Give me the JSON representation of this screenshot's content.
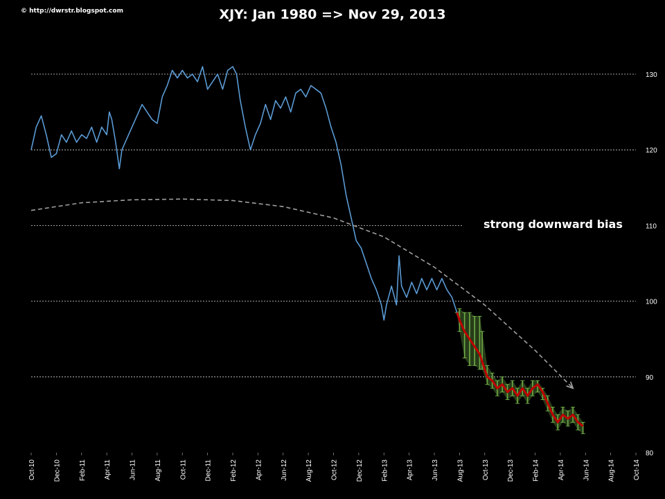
{
  "credit": "© http://dwrstr.blogspot.com",
  "title": "XJY: Jan 1980  => Nov 29, 2013",
  "annotation": "strong downward bias",
  "colors": {
    "background": "#000000",
    "price": "#5b9bd5",
    "forecast_band": "#70ad47",
    "forecast_mean": "#c00000",
    "trend": "#a0a0a0",
    "grid": "#ffffff"
  },
  "chart_data": {
    "type": "line",
    "title": "XJY: Jan 1980  => Nov 29, 2013",
    "y_axis": {
      "min": 80,
      "max": 130,
      "ticks": [
        80,
        90,
        100,
        110,
        120,
        130
      ],
      "position": "right"
    },
    "x_ticks": [
      "Oct-10",
      "Dec-10",
      "Feb-11",
      "Apr-11",
      "Jun-11",
      "Aug-11",
      "Oct-11",
      "Dec-11",
      "Feb-12",
      "Apr-12",
      "Jun-12",
      "Aug-12",
      "Oct-12",
      "Dec-12",
      "Feb-13",
      "Apr-13",
      "Jun-13",
      "Aug-13",
      "Oct-13",
      "Dec-13",
      "Feb-14",
      "Apr-14",
      "Jun-14",
      "Aug-14",
      "Oct-14"
    ],
    "grid": {
      "horizontal": true,
      "style": "dotted"
    },
    "series": [
      {
        "kind": "price",
        "points": [
          [
            0,
            120
          ],
          [
            0.2,
            123
          ],
          [
            0.4,
            124.5
          ],
          [
            0.6,
            122
          ],
          [
            0.8,
            119
          ],
          [
            1,
            119.5
          ],
          [
            1.2,
            122
          ],
          [
            1.4,
            121
          ],
          [
            1.6,
            122.5
          ],
          [
            1.8,
            121
          ],
          [
            2,
            122
          ],
          [
            2.2,
            121.5
          ],
          [
            2.4,
            123
          ],
          [
            2.6,
            121
          ],
          [
            2.8,
            123
          ],
          [
            3,
            122
          ],
          [
            3.1,
            125
          ],
          [
            3.2,
            124
          ],
          [
            3.35,
            121
          ],
          [
            3.5,
            117.5
          ],
          [
            3.6,
            120
          ],
          [
            3.8,
            121.5
          ],
          [
            4,
            123
          ],
          [
            4.2,
            124.5
          ],
          [
            4.4,
            126
          ],
          [
            4.6,
            125
          ],
          [
            4.8,
            124
          ],
          [
            5,
            123.5
          ],
          [
            5.2,
            127
          ],
          [
            5.4,
            128.5
          ],
          [
            5.6,
            130.5
          ],
          [
            5.8,
            129.5
          ],
          [
            6,
            130.5
          ],
          [
            6.2,
            129.5
          ],
          [
            6.4,
            130
          ],
          [
            6.6,
            129
          ],
          [
            6.8,
            131
          ],
          [
            7,
            128
          ],
          [
            7.2,
            129
          ],
          [
            7.4,
            130
          ],
          [
            7.6,
            128
          ],
          [
            7.8,
            130.5
          ],
          [
            8,
            131
          ],
          [
            8.15,
            130
          ],
          [
            8.3,
            126.5
          ],
          [
            8.5,
            123
          ],
          [
            8.7,
            120
          ],
          [
            8.9,
            122
          ],
          [
            9.1,
            123.5
          ],
          [
            9.3,
            126
          ],
          [
            9.5,
            124
          ],
          [
            9.7,
            126.5
          ],
          [
            9.9,
            125.5
          ],
          [
            10.1,
            127
          ],
          [
            10.3,
            125
          ],
          [
            10.5,
            127.5
          ],
          [
            10.7,
            128
          ],
          [
            10.9,
            127
          ],
          [
            11.1,
            128.5
          ],
          [
            11.3,
            128
          ],
          [
            11.5,
            127.5
          ],
          [
            11.7,
            125.5
          ],
          [
            11.9,
            123
          ],
          [
            12.1,
            121
          ],
          [
            12.3,
            118
          ],
          [
            12.5,
            114
          ],
          [
            12.7,
            111
          ],
          [
            12.9,
            108
          ],
          [
            13.1,
            107
          ],
          [
            13.3,
            105
          ],
          [
            13.5,
            103
          ],
          [
            13.7,
            101.5
          ],
          [
            13.9,
            99.5
          ],
          [
            14,
            97.5
          ],
          [
            14.1,
            99.5
          ],
          [
            14.3,
            102
          ],
          [
            14.5,
            99.5
          ],
          [
            14.6,
            106
          ],
          [
            14.7,
            102
          ],
          [
            14.9,
            100.5
          ],
          [
            15.1,
            102.5
          ],
          [
            15.3,
            101
          ],
          [
            15.5,
            103
          ],
          [
            15.7,
            101.5
          ],
          [
            15.9,
            103
          ],
          [
            16.1,
            101.5
          ],
          [
            16.3,
            103
          ],
          [
            16.5,
            101.5
          ],
          [
            16.7,
            100.5
          ],
          [
            16.8,
            99.5
          ],
          [
            16.9,
            98.5
          ]
        ]
      },
      {
        "kind": "forecast_mean",
        "points": [
          [
            16.9,
            98.5
          ],
          [
            17,
            97.5
          ],
          [
            17.2,
            96
          ],
          [
            17.4,
            95
          ],
          [
            17.6,
            94
          ],
          [
            17.8,
            93
          ],
          [
            17.9,
            92
          ],
          [
            18.1,
            90
          ],
          [
            18.3,
            89.5
          ],
          [
            18.5,
            88.5
          ],
          [
            18.7,
            89
          ],
          [
            18.9,
            88
          ],
          [
            19.1,
            88.5
          ],
          [
            19.3,
            87.5
          ],
          [
            19.5,
            88.5
          ],
          [
            19.7,
            87.5
          ],
          [
            19.9,
            88.5
          ],
          [
            20.1,
            89
          ],
          [
            20.3,
            88
          ],
          [
            20.5,
            86.5
          ],
          [
            20.7,
            85
          ],
          [
            20.9,
            84
          ],
          [
            21.1,
            85
          ],
          [
            21.3,
            84.5
          ],
          [
            21.5,
            85
          ],
          [
            21.7,
            84
          ],
          [
            21.9,
            83.5
          ]
        ]
      },
      {
        "kind": "forecast_band",
        "upper_points": [
          [
            16.9,
            98.5
          ],
          [
            17,
            99
          ],
          [
            17.2,
            98.5
          ],
          [
            17.4,
            98.5
          ],
          [
            17.6,
            98
          ],
          [
            17.8,
            98
          ],
          [
            17.9,
            96
          ],
          [
            18.1,
            91.5
          ],
          [
            18.3,
            90.5
          ],
          [
            18.5,
            89.5
          ],
          [
            18.7,
            90
          ],
          [
            18.9,
            89
          ],
          [
            19.1,
            89.5
          ],
          [
            19.3,
            88.5
          ],
          [
            19.5,
            89.5
          ],
          [
            19.7,
            88.5
          ],
          [
            19.9,
            89.5
          ],
          [
            20.1,
            89.5
          ],
          [
            20.3,
            88.5
          ],
          [
            20.5,
            87.5
          ],
          [
            20.7,
            86
          ],
          [
            20.9,
            85
          ],
          [
            21.1,
            86
          ],
          [
            21.3,
            85.5
          ],
          [
            21.5,
            86
          ],
          [
            21.7,
            85
          ],
          [
            21.9,
            84
          ]
        ],
        "lower_points": [
          [
            16.9,
            98.5
          ],
          [
            17,
            96
          ],
          [
            17.2,
            92.5
          ],
          [
            17.4,
            91.5
          ],
          [
            17.6,
            91.5
          ],
          [
            17.8,
            91
          ],
          [
            17.9,
            91
          ],
          [
            18.1,
            89
          ],
          [
            18.3,
            88.5
          ],
          [
            18.5,
            87.5
          ],
          [
            18.7,
            88
          ],
          [
            18.9,
            87
          ],
          [
            19.1,
            87.5
          ],
          [
            19.3,
            86.5
          ],
          [
            19.5,
            87.5
          ],
          [
            19.7,
            86.5
          ],
          [
            19.9,
            87.5
          ],
          [
            20.1,
            88
          ],
          [
            20.3,
            87
          ],
          [
            20.5,
            85.5
          ],
          [
            20.7,
            84
          ],
          [
            20.9,
            83
          ],
          [
            21.1,
            84
          ],
          [
            21.3,
            83.5
          ],
          [
            21.5,
            84
          ],
          [
            21.7,
            83
          ],
          [
            21.9,
            82.5
          ]
        ]
      },
      {
        "kind": "trend",
        "points": [
          [
            0,
            112
          ],
          [
            2,
            113
          ],
          [
            4,
            113.4
          ],
          [
            6,
            113.5
          ],
          [
            8,
            113.3
          ],
          [
            10,
            112.5
          ],
          [
            12,
            111
          ],
          [
            14,
            108.5
          ],
          [
            16,
            104.5
          ],
          [
            18,
            99.5
          ],
          [
            20,
            93.5
          ],
          [
            21.5,
            88.5
          ]
        ]
      }
    ]
  }
}
